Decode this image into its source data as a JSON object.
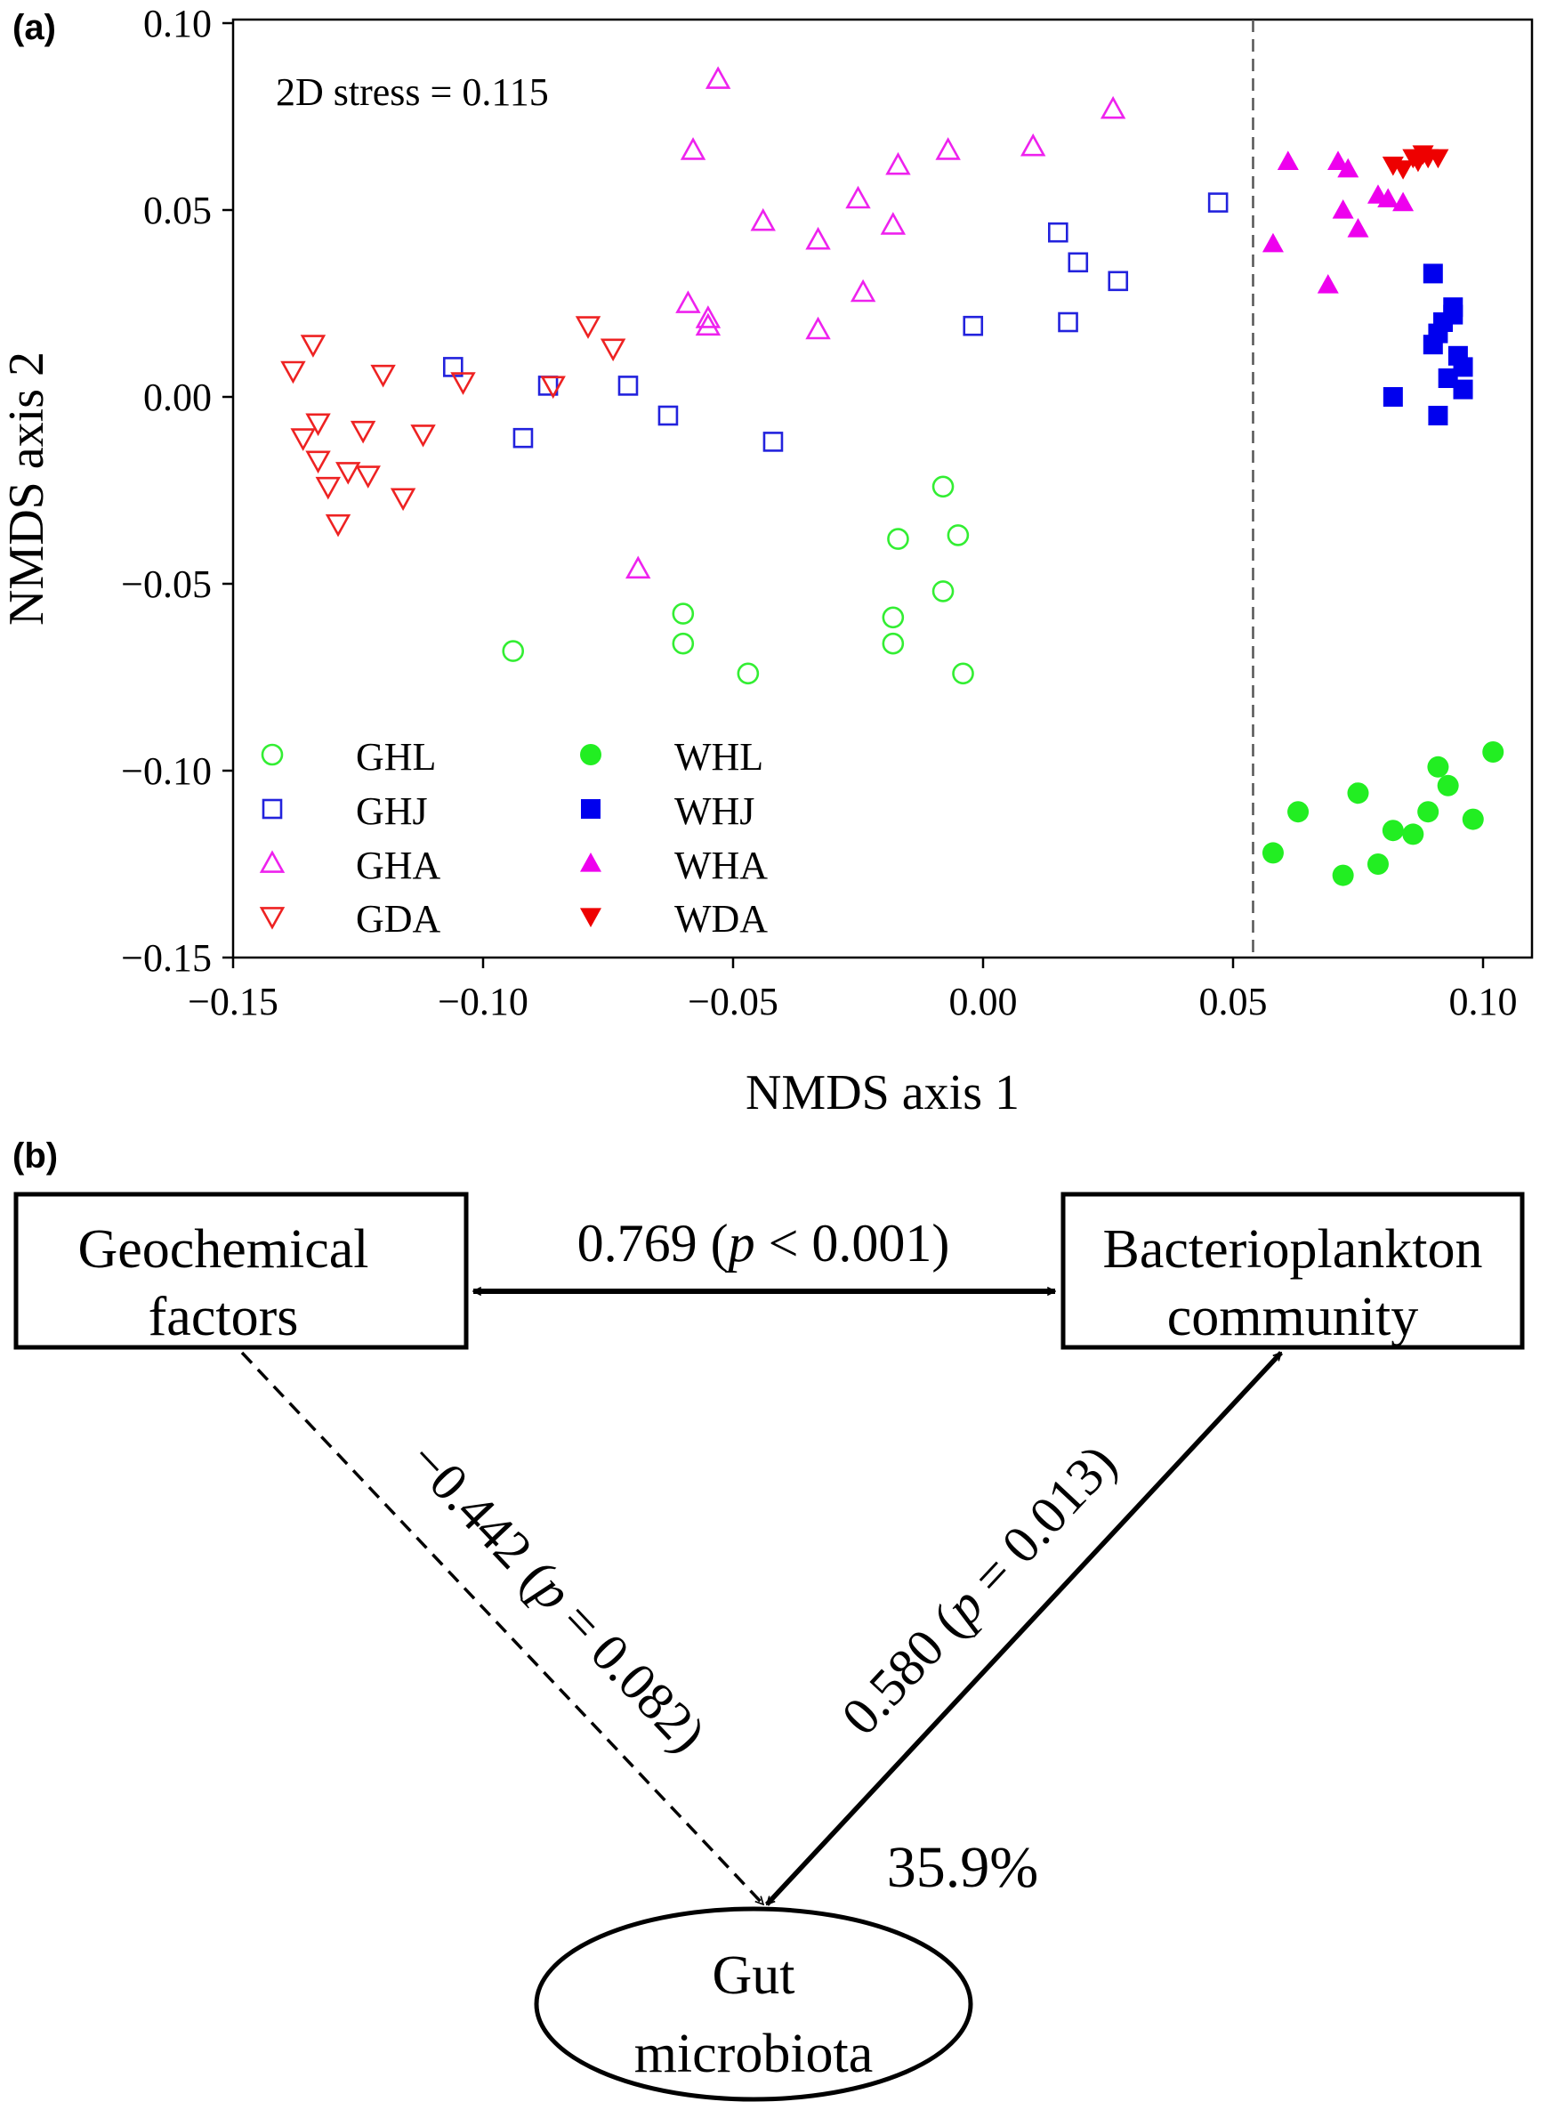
{
  "panel_a": {
    "label": "(a)",
    "chart_data": {
      "type": "scatter",
      "xlabel": "NMDS axis 1",
      "ylabel": "NMDS axis 2",
      "xlim": [
        -0.15,
        0.11
      ],
      "ylim": [
        -0.15,
        0.1
      ],
      "x_ticks": [
        "−0.15",
        "−0.10",
        "−0.05",
        "0.00",
        "0.05",
        "0.10"
      ],
      "x_tick_values": [
        -0.15,
        -0.1,
        -0.05,
        0.0,
        0.05,
        0.1
      ],
      "y_ticks": [
        "0.10",
        "0.05",
        "0.00",
        "−0.05",
        "−0.10",
        "−0.15"
      ],
      "y_tick_values": [
        0.1,
        0.05,
        0.0,
        -0.05,
        -0.1,
        -0.15
      ],
      "grid": false,
      "legend_position": "bottom-left",
      "annotation": "2D stress = 0.115",
      "divider_x": 0.054,
      "series": [
        {
          "name": "GHL",
          "marker": "circle",
          "filled": false,
          "color": "#33ee33",
          "x": [
            -0.094,
            -0.06,
            -0.06,
            -0.047,
            -0.017,
            -0.018,
            -0.018,
            -0.008,
            -0.008,
            -0.005,
            -0.004
          ],
          "y": [
            -0.068,
            -0.058,
            -0.066,
            -0.074,
            -0.038,
            -0.059,
            -0.066,
            -0.024,
            -0.052,
            -0.037,
            -0.074
          ]
        },
        {
          "name": "GHJ",
          "marker": "square",
          "filled": false,
          "color": "#2222dd",
          "x": [
            -0.106,
            -0.092,
            -0.087,
            -0.071,
            -0.063,
            -0.042,
            -0.002,
            0.015,
            0.017,
            0.019,
            0.027,
            0.047
          ],
          "y": [
            0.008,
            -0.011,
            0.003,
            0.003,
            -0.005,
            -0.012,
            0.019,
            0.044,
            0.02,
            0.036,
            0.031,
            0.052
          ]
        },
        {
          "name": "GHA",
          "marker": "triangle-up",
          "filled": false,
          "color": "#ee22ee",
          "x": [
            -0.069,
            -0.059,
            -0.058,
            -0.055,
            -0.055,
            -0.053,
            -0.044,
            -0.033,
            -0.033,
            -0.025,
            -0.024,
            -0.018,
            -0.017,
            -0.007,
            0.01,
            0.026
          ],
          "y": [
            -0.046,
            0.025,
            0.066,
            0.021,
            0.019,
            0.085,
            0.047,
            0.042,
            0.018,
            0.053,
            0.028,
            0.046,
            0.062,
            0.066,
            0.067,
            0.077
          ]
        },
        {
          "name": "GDA",
          "marker": "triangle-down",
          "filled": false,
          "color": "#ee2222",
          "x": [
            -0.138,
            -0.136,
            -0.134,
            -0.133,
            -0.133,
            -0.131,
            -0.129,
            -0.127,
            -0.124,
            -0.123,
            -0.12,
            -0.116,
            -0.112,
            -0.104,
            -0.086,
            -0.079,
            -0.074
          ],
          "y": [
            0.007,
            -0.011,
            0.014,
            -0.007,
            -0.017,
            -0.024,
            -0.034,
            -0.02,
            -0.009,
            -0.021,
            0.006,
            -0.027,
            -0.01,
            0.004,
            0.003,
            0.019,
            0.013
          ]
        },
        {
          "name": "WHL",
          "marker": "circle",
          "filled": true,
          "color": "#22ee22",
          "x": [
            0.058,
            0.063,
            0.072,
            0.075,
            0.079,
            0.082,
            0.086,
            0.089,
            0.091,
            0.093,
            0.098,
            0.102
          ],
          "y": [
            -0.122,
            -0.111,
            -0.128,
            -0.106,
            -0.125,
            -0.116,
            -0.117,
            -0.111,
            -0.099,
            -0.104,
            -0.113,
            -0.095
          ]
        },
        {
          "name": "WHJ",
          "marker": "square",
          "filled": true,
          "color": "#0000ee",
          "x": [
            0.082,
            0.09,
            0.09,
            0.091,
            0.091,
            0.092,
            0.093,
            0.094,
            0.094,
            0.095,
            0.096,
            0.096
          ],
          "y": [
            0.0,
            0.033,
            0.014,
            0.017,
            -0.005,
            0.02,
            0.005,
            0.022,
            0.024,
            0.011,
            0.002,
            0.008
          ]
        },
        {
          "name": "WHA",
          "marker": "triangle-up",
          "filled": true,
          "color": "#ee00ee",
          "x": [
            0.058,
            0.061,
            0.069,
            0.071,
            0.072,
            0.073,
            0.075,
            0.079,
            0.081,
            0.084
          ],
          "y": [
            0.041,
            0.063,
            0.03,
            0.063,
            0.05,
            0.061,
            0.045,
            0.054,
            0.053,
            0.052
          ]
        },
        {
          "name": "WDA",
          "marker": "triangle-down",
          "filled": true,
          "color": "#ee0000",
          "x": [
            0.082,
            0.084,
            0.086,
            0.087,
            0.088,
            0.089,
            0.091
          ],
          "y": [
            0.062,
            0.061,
            0.064,
            0.063,
            0.065,
            0.064,
            0.064
          ]
        }
      ]
    }
  },
  "panel_b": {
    "label": "(b)",
    "nodes": {
      "geochemical": {
        "line1": "Geochemical",
        "line2": "factors"
      },
      "bacterioplankton": {
        "line1": "Bacterioplankton",
        "line2": "community"
      },
      "gut": {
        "line1": "Gut",
        "line2": "microbiota"
      }
    },
    "edges": {
      "geo_bact": {
        "prefix": "0.769 (",
        "p": "p",
        "suffix": " < 0.001)"
      },
      "geo_gut": {
        "prefix": "−0.442 (",
        "p": "p",
        "suffix": " = 0.082)"
      },
      "bact_gut": {
        "prefix": "0.580 (",
        "p": "p",
        "suffix": " = 0.013)"
      }
    },
    "explained": "35.9%"
  }
}
